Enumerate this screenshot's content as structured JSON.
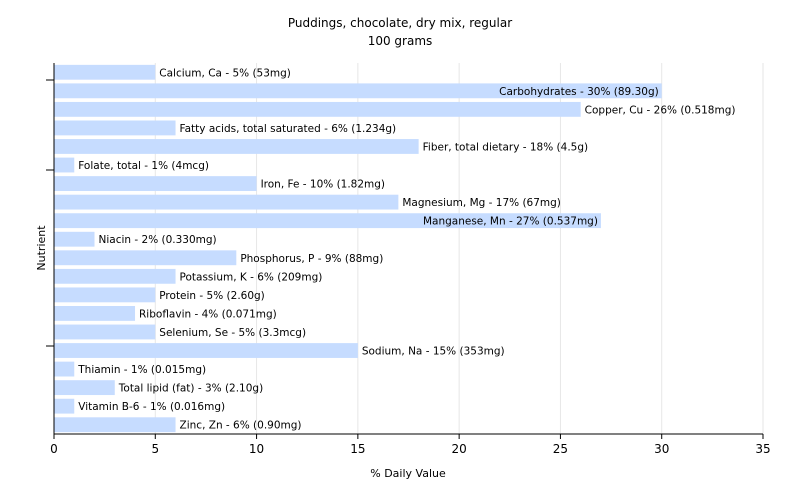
{
  "chart_data": {
    "type": "bar",
    "orientation": "horizontal",
    "title": "Puddings, chocolate, dry mix, regular",
    "subtitle": "100 grams",
    "xlabel": "% Daily Value",
    "ylabel": "Nutrient",
    "xlim": [
      0,
      35
    ],
    "xticks": [
      0,
      5,
      10,
      15,
      20,
      25,
      30,
      35
    ],
    "grid": true,
    "bar_color": "#c6dcff",
    "categories": [
      "Calcium, Ca",
      "Carbohydrates",
      "Copper, Cu",
      "Fatty acids, total saturated",
      "Fiber, total dietary",
      "Folate, total",
      "Iron, Fe",
      "Magnesium, Mg",
      "Manganese, Mn",
      "Niacin",
      "Phosphorus, P",
      "Potassium, K",
      "Protein",
      "Riboflavin",
      "Selenium, Se",
      "Sodium, Na",
      "Thiamin",
      "Total lipid (fat)",
      "Vitamin B-6",
      "Zinc, Zn"
    ],
    "values": [
      5,
      30,
      26,
      6,
      18,
      1,
      10,
      17,
      27,
      2,
      9,
      6,
      5,
      4,
      5,
      15,
      1,
      3,
      1,
      6
    ],
    "labels": [
      "Calcium, Ca - 5% (53mg)",
      "Carbohydrates - 30% (89.30g)",
      "Copper, Cu - 26% (0.518mg)",
      "Fatty acids, total saturated - 6% (1.234g)",
      "Fiber, total dietary - 18% (4.5g)",
      "Folate, total - 1% (4mcg)",
      "Iron, Fe - 10% (1.82mg)",
      "Magnesium, Mg - 17% (67mg)",
      "Manganese, Mn - 27% (0.537mg)",
      "Niacin - 2% (0.330mg)",
      "Phosphorus, P - 9% (88mg)",
      "Potassium, K - 6% (209mg)",
      "Protein - 5% (2.60g)",
      "Riboflavin - 4% (0.071mg)",
      "Selenium, Se - 5% (3.3mcg)",
      "Sodium, Na - 15% (353mg)",
      "Thiamin - 1% (0.015mg)",
      "Total lipid (fat) - 3% (2.10g)",
      "Vitamin B-6 - 1% (0.016mg)",
      "Zinc, Zn - 6% (0.90mg)"
    ]
  }
}
